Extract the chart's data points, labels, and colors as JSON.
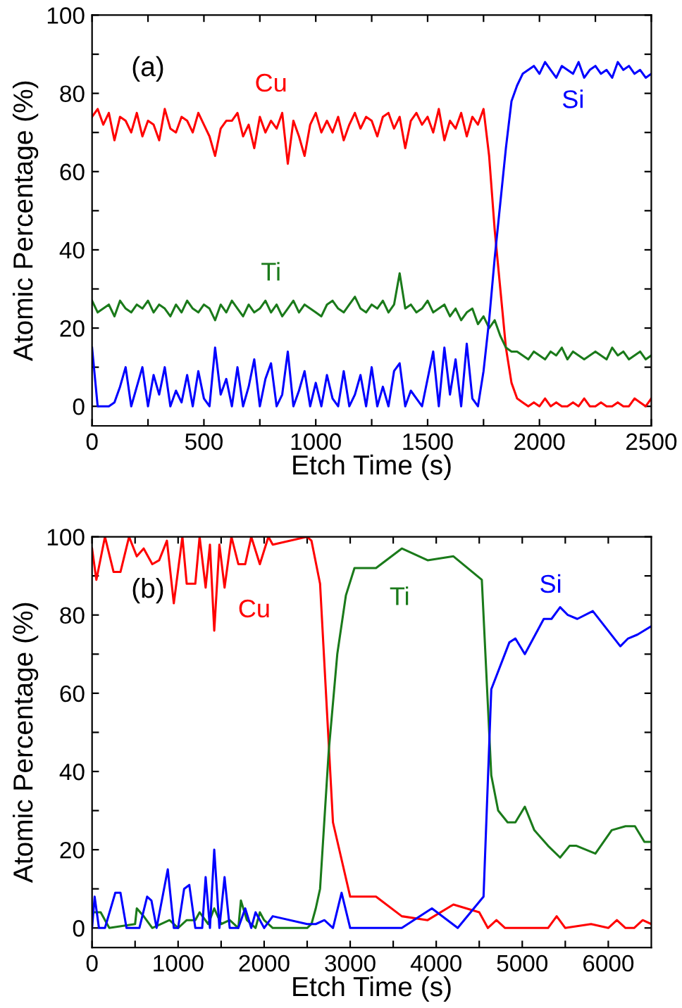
{
  "chart_data": [
    {
      "type": "line",
      "xlabel": "Etch Time (s)",
      "ylabel": "Atomic Percentage (%)",
      "xlim": [
        0,
        2500
      ],
      "ylim": [
        -5,
        100
      ],
      "xticks": [
        0,
        {
          "value": 250,
          "label": null
        },
        500,
        {
          "value": 750,
          "label": null
        },
        1000,
        {
          "value": 1250,
          "label": null
        },
        1500,
        {
          "value": 1750,
          "label": null
        },
        2000,
        {
          "value": 2250,
          "label": null
        },
        2500
      ],
      "yticks": [
        0,
        {
          "value": 10,
          "label": null
        },
        20,
        {
          "value": 30,
          "label": null
        },
        40,
        {
          "value": 50,
          "label": null
        },
        60,
        {
          "value": 70,
          "label": null
        },
        80,
        {
          "value": 90,
          "label": null
        },
        100
      ],
      "x": [
        0,
        25,
        50,
        75,
        100,
        125,
        150,
        175,
        200,
        225,
        250,
        275,
        300,
        325,
        350,
        375,
        400,
        425,
        450,
        475,
        500,
        525,
        550,
        575,
        600,
        625,
        650,
        675,
        700,
        725,
        750,
        775,
        800,
        825,
        850,
        875,
        900,
        925,
        950,
        975,
        1000,
        1025,
        1050,
        1075,
        1100,
        1125,
        1150,
        1175,
        1200,
        1225,
        1250,
        1275,
        1300,
        1325,
        1350,
        1375,
        1400,
        1425,
        1450,
        1475,
        1500,
        1525,
        1550,
        1575,
        1600,
        1625,
        1650,
        1675,
        1700,
        1725,
        1750,
        1775,
        1800,
        1825,
        1850,
        1875,
        1900,
        1925,
        1950,
        1975,
        2000,
        2025,
        2050,
        2075,
        2100,
        2125,
        2150,
        2175,
        2200,
        2225,
        2250,
        2275,
        2300,
        2325,
        2350,
        2375,
        2400,
        2425,
        2450,
        2475,
        2500
      ],
      "series": [
        {
          "name": "Cu",
          "color": "#ff0000",
          "values": [
            74,
            76,
            72,
            75,
            68,
            74,
            73,
            70,
            75,
            69,
            73,
            72,
            68,
            76,
            71,
            70,
            74,
            73,
            70,
            75,
            72,
            69,
            64,
            71,
            73,
            73,
            75,
            69,
            72,
            66,
            74,
            70,
            73,
            71,
            75,
            62,
            73,
            69,
            64,
            72,
            75,
            70,
            73,
            70,
            74,
            68,
            72,
            75,
            71,
            74,
            73,
            69,
            74,
            75,
            71,
            74,
            66,
            73,
            75,
            72,
            74,
            70,
            76,
            68,
            73,
            71,
            75,
            69,
            74,
            72,
            76,
            64,
            45,
            30,
            15,
            6,
            2,
            1,
            0,
            1,
            0,
            2,
            0,
            1,
            0,
            0,
            1,
            0,
            2,
            0,
            0,
            1,
            0,
            0,
            1,
            0,
            0,
            2,
            1,
            0,
            2
          ]
        },
        {
          "name": "Ti",
          "color": "#1a7a1a",
          "values": [
            27,
            24,
            25,
            26,
            23,
            27,
            25,
            24,
            26,
            25,
            27,
            24,
            26,
            25,
            23,
            26,
            24,
            27,
            25,
            24,
            26,
            25,
            22,
            26,
            24,
            27,
            25,
            23,
            26,
            24,
            25,
            27,
            24,
            26,
            23,
            25,
            27,
            24,
            26,
            25,
            24,
            23,
            26,
            27,
            25,
            24,
            26,
            28,
            25,
            24,
            26,
            25,
            27,
            24,
            26,
            34,
            25,
            26,
            24,
            25,
            27,
            24,
            25,
            26,
            23,
            25,
            22,
            24,
            25,
            21,
            23,
            20,
            22,
            18,
            15,
            14,
            14,
            13,
            12,
            14,
            13,
            12,
            14,
            13,
            15,
            12,
            14,
            13,
            12,
            13,
            14,
            13,
            12,
            15,
            13,
            14,
            12,
            13,
            14,
            12,
            13
          ]
        },
        {
          "name": "Si",
          "color": "#0000ff",
          "values": [
            15,
            0,
            0,
            0,
            1,
            5,
            10,
            0,
            5,
            10,
            0,
            8,
            3,
            10,
            0,
            4,
            1,
            8,
            0,
            9,
            2,
            0,
            15,
            3,
            7,
            0,
            10,
            0,
            5,
            12,
            0,
            7,
            11,
            0,
            3,
            14,
            0,
            4,
            9,
            0,
            6,
            0,
            8,
            2,
            0,
            9,
            0,
            3,
            8,
            0,
            10,
            0,
            5,
            0,
            9,
            11,
            0,
            4,
            2,
            0,
            7,
            14,
            0,
            15,
            3,
            12,
            0,
            16,
            2,
            0,
            9,
            22,
            38,
            52,
            66,
            78,
            82,
            85,
            86,
            87,
            85,
            88,
            86,
            84,
            87,
            86,
            85,
            88,
            84,
            86,
            87,
            85,
            86,
            84,
            88,
            86,
            87,
            85,
            86,
            84,
            85
          ]
        }
      ],
      "annotations": [
        "(a)"
      ]
    },
    {
      "type": "line",
      "xlabel": "Etch Time (s)",
      "ylabel": "Atomic Percentage (%)",
      "xlim": [
        0,
        6500
      ],
      "ylim": [
        -5,
        100
      ],
      "xticks": [
        0,
        {
          "value": 500,
          "label": null
        },
        1000,
        {
          "value": 1500,
          "label": null
        },
        2000,
        {
          "value": 2500,
          "label": null
        },
        3000,
        {
          "value": 3500,
          "label": null
        },
        4000,
        {
          "value": 4500,
          "label": null
        },
        5000,
        {
          "value": 5500,
          "label": null
        },
        6000
      ],
      "yticks": [
        0,
        {
          "value": 10,
          "label": null
        },
        20,
        {
          "value": 30,
          "label": null
        },
        40,
        {
          "value": 50,
          "label": null
        },
        60,
        {
          "value": 70,
          "label": null
        },
        80,
        {
          "value": 90,
          "label": null
        },
        100
      ],
      "series": [
        {
          "name": "Cu",
          "color": "#ff0000",
          "x": [
            0,
            50,
            150,
            250,
            330,
            430,
            520,
            600,
            700,
            780,
            870,
            950,
            1050,
            1100,
            1200,
            1250,
            1320,
            1370,
            1420,
            1480,
            1540,
            1620,
            1700,
            1780,
            1850,
            1950,
            2050,
            2100,
            2500,
            2550,
            2650,
            2800,
            3000,
            3300,
            3600,
            3900,
            4200,
            4500,
            4600,
            4700,
            4800,
            4900,
            5000,
            5300,
            5400,
            5500,
            5800,
            6000,
            6100,
            6200,
            6300,
            6400,
            6500
          ],
          "values": [
            97,
            89,
            100,
            91,
            91,
            100,
            95,
            97,
            93,
            94,
            99,
            83,
            100,
            88,
            88,
            100,
            87,
            98,
            76,
            98,
            87,
            100,
            93,
            93,
            100,
            93,
            100,
            98,
            100,
            99,
            88,
            27,
            8,
            8,
            3,
            2,
            6,
            4,
            0,
            2,
            0,
            0,
            0,
            0,
            3,
            0,
            1,
            0,
            2,
            0,
            0,
            2,
            1
          ]
        },
        {
          "name": "Ti",
          "color": "#1a7a1a",
          "x": [
            0,
            100,
            200,
            500,
            520,
            600,
            700,
            900,
            1000,
            1100,
            1200,
            1250,
            1350,
            1420,
            1500,
            1600,
            1700,
            1730,
            1800,
            1900,
            1950,
            2000,
            2100,
            2500,
            2550,
            2600,
            2650,
            2750,
            2850,
            2950,
            3050,
            3300,
            3600,
            3900,
            4200,
            4530,
            4640,
            4720,
            4830,
            4920,
            5030,
            5140,
            5300,
            5440,
            5550,
            5630,
            5740,
            5850,
            6040,
            6200,
            6310,
            6420,
            6500
          ],
          "values": [
            4,
            4,
            0,
            1,
            5,
            3,
            0,
            2,
            0,
            2,
            2,
            4,
            1,
            5,
            1,
            2,
            0,
            7,
            2,
            0,
            4,
            2,
            0,
            0,
            1,
            5,
            10,
            45,
            70,
            85,
            92,
            92,
            97,
            94,
            95,
            89,
            39,
            30,
            27,
            27,
            31,
            25,
            21,
            18,
            21,
            21,
            20,
            19,
            25,
            26,
            26,
            22,
            22
          ]
        },
        {
          "name": "Si",
          "color": "#0000ff",
          "x": [
            0,
            30,
            80,
            150,
            270,
            330,
            400,
            550,
            640,
            690,
            750,
            880,
            950,
            1000,
            1070,
            1130,
            1200,
            1280,
            1320,
            1370,
            1420,
            1480,
            1540,
            1600,
            1700,
            1780,
            1850,
            1900,
            2000,
            2100,
            2500,
            2600,
            2700,
            2800,
            2900,
            3000,
            3600,
            3950,
            4250,
            4550,
            4640,
            4850,
            4920,
            5030,
            5250,
            5340,
            5440,
            5530,
            5640,
            5820,
            6140,
            6230,
            6340,
            6490
          ],
          "values": [
            0,
            8,
            0,
            0,
            9,
            9,
            0,
            0,
            8,
            7,
            0,
            15,
            0,
            0,
            10,
            11,
            0,
            0,
            13,
            0,
            20,
            0,
            13,
            0,
            0,
            5,
            0,
            4,
            0,
            3,
            1,
            1,
            2,
            0,
            9,
            0,
            0,
            5,
            0,
            8,
            61,
            73,
            74,
            70,
            79,
            79,
            82,
            80,
            79,
            81,
            72,
            74,
            75,
            77
          ]
        }
      ],
      "annotations": [
        "(b)"
      ]
    }
  ]
}
